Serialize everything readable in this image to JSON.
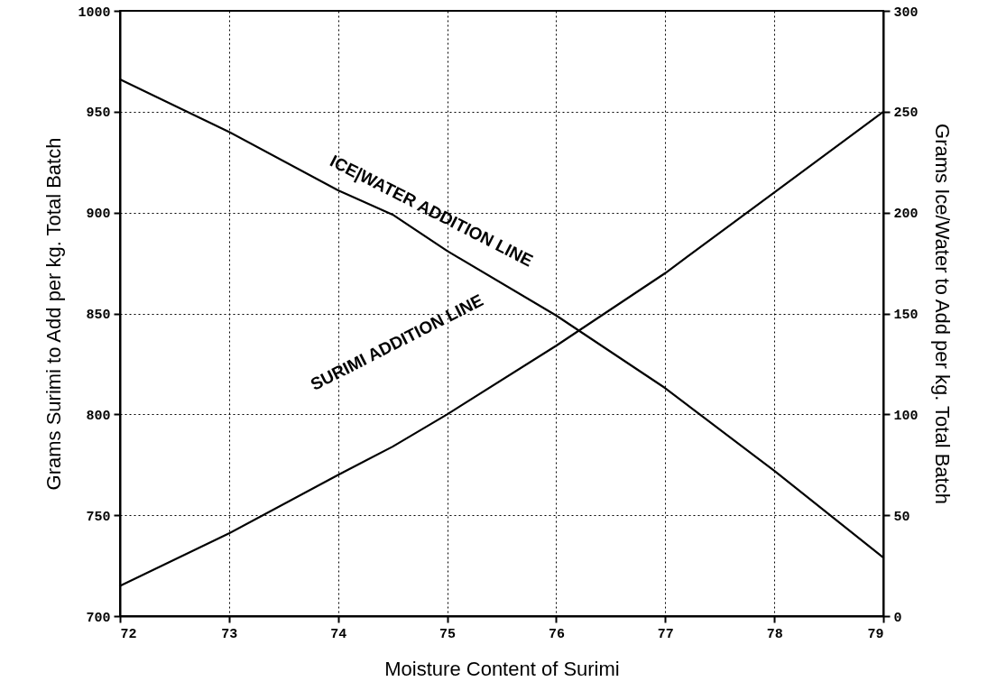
{
  "chart_data": {
    "type": "line",
    "x": [
      72,
      73,
      74,
      74.5,
      75,
      76,
      77,
      78,
      79
    ],
    "series": [
      {
        "name": "SURIMI ADDITION LINE",
        "color": "#000000",
        "axis": "y",
        "values": [
          715,
          741,
          770,
          784,
          800,
          834,
          870,
          910,
          950
        ]
      },
      {
        "name": "ICE|WATER ADDITION LINE",
        "color": "#000000",
        "axis": "y2",
        "values": [
          266,
          240,
          211,
          199,
          181,
          149,
          113,
          72,
          29
        ]
      }
    ],
    "xlabel": "Moisture Content of Surimi",
    "ylabel": "Grams Surimi to Add per kg. Total Batch",
    "y2label": "Grams Ice/Water to Add per kg. Total Batch",
    "xlim": [
      72,
      79
    ],
    "xticks": [
      72,
      73,
      74,
      75,
      76,
      77,
      78,
      79
    ],
    "ylim": [
      700,
      1000
    ],
    "yticks": [
      700,
      750,
      800,
      850,
      900,
      950,
      1000
    ],
    "y2lim": [
      0,
      300
    ],
    "y2ticks": [
      0,
      50,
      100,
      150,
      200,
      250,
      300
    ],
    "grid": true
  }
}
